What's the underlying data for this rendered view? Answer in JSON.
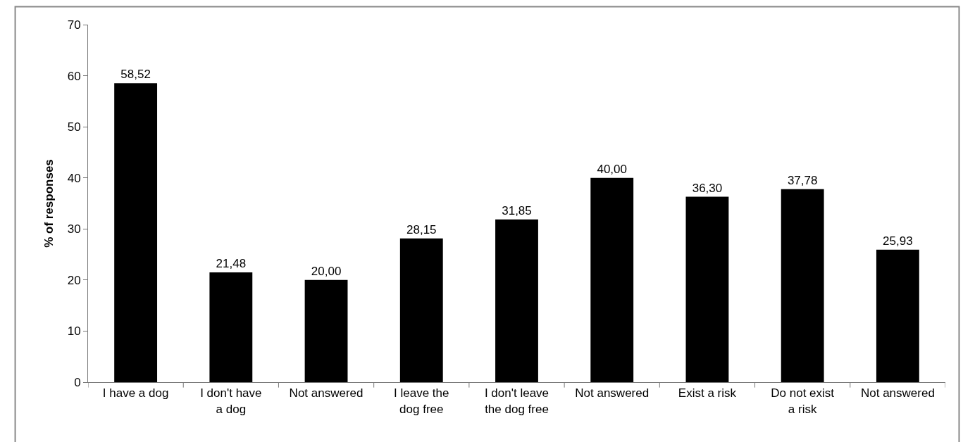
{
  "chart_data": {
    "type": "bar",
    "ylabel": "% of responses",
    "categories": [
      "I have a dog",
      "I don't have a dog",
      "Not answered",
      "I leave the dog free",
      "I don't leave the dog free",
      "Not answered",
      "Exist a risk",
      "Do not exist a risk",
      "Not answered"
    ],
    "values": [
      58.52,
      21.48,
      20.0,
      28.15,
      31.85,
      40.0,
      36.3,
      37.78,
      25.93
    ],
    "value_labels": [
      "58,52",
      "21,48",
      "20,00",
      "28,15",
      "31,85",
      "40,00",
      "36,30",
      "37,78",
      "25,93"
    ],
    "color": "#000000",
    "ylim": [
      0,
      70
    ],
    "yticks": [
      0,
      10,
      20,
      30,
      40,
      50,
      60,
      70
    ],
    "legend": false
  }
}
